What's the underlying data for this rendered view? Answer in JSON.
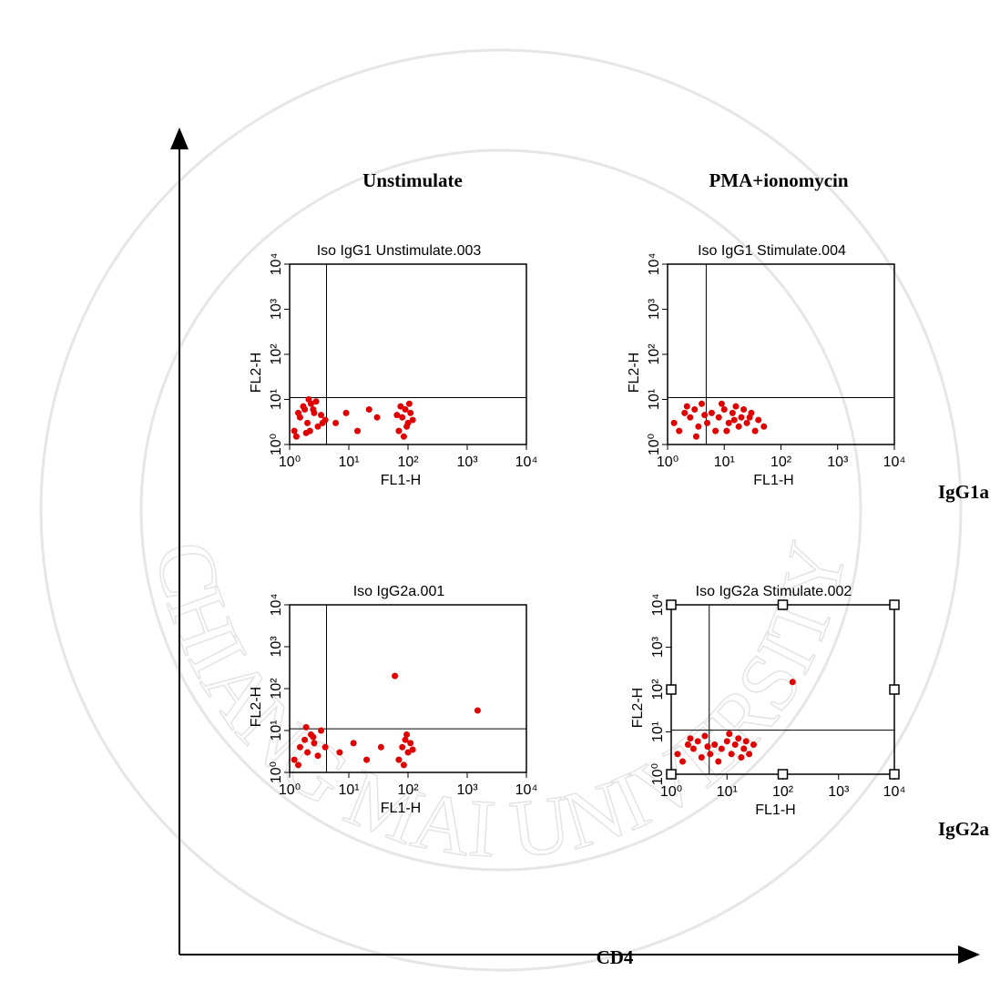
{
  "figure": {
    "column_labels": [
      "Unstimulate",
      "PMA+ionomycin"
    ],
    "row_labels": [
      "IgG1a",
      "IgG2a"
    ],
    "x_axis_label": "CD4",
    "watermark": "CHIANG MAI UNIVERSITY"
  },
  "chart_data": [
    {
      "type": "scatter",
      "title": "Iso IgG1 Unstimulate.003",
      "xlabel": "FL1-H",
      "ylabel": "FL2-H",
      "color": "#e00000",
      "log_scale": true,
      "x": [
        1.2,
        1.5,
        1.8,
        2,
        2.3,
        2.6,
        3,
        3.4,
        1.3,
        1.7,
        2.2,
        2.8,
        3.6,
        1.4,
        2.5,
        4,
        1.9,
        2.1,
        6,
        9,
        14,
        22,
        30,
        70,
        80,
        90,
        100,
        110,
        75,
        85,
        95,
        105,
        120,
        65
      ],
      "y": [
        2,
        4,
        6,
        3,
        8,
        5,
        2.5,
        4.5,
        1.5,
        7,
        2,
        9,
        3,
        5,
        6,
        3.5,
        1.8,
        10,
        3,
        5,
        2,
        6,
        4,
        2,
        4,
        6,
        3,
        5,
        7,
        1.5,
        2.5,
        8,
        3.5,
        4.5
      ],
      "xlim": [
        1,
        10000
      ],
      "ylim": [
        1,
        10000
      ],
      "xticks": [
        {
          "value": 1,
          "label": "10⁰"
        },
        {
          "value": 10,
          "label": "10¹"
        },
        {
          "value": 100,
          "label": "10²"
        },
        {
          "value": 1000,
          "label": "10³"
        },
        {
          "value": 10000,
          "label": "10⁴"
        }
      ],
      "yticks": [
        {
          "value": 1,
          "label": "10⁰"
        },
        {
          "value": 10,
          "label": "10¹"
        },
        {
          "value": 100,
          "label": "10²"
        },
        {
          "value": 1000,
          "label": "10³"
        },
        {
          "value": 10000,
          "label": "10⁴"
        }
      ],
      "quadrant": {
        "x": 4.2,
        "y": 11
      }
    },
    {
      "type": "scatter",
      "title": "Iso IgG1 Stimulate.004",
      "xlabel": "FL1-H",
      "ylabel": "FL2-H",
      "color": "#e00000",
      "log_scale": true,
      "x": [
        1.3,
        1.6,
        2,
        2.5,
        3,
        3.5,
        4,
        5,
        6,
        7,
        8,
        10,
        12,
        14,
        16,
        18,
        20,
        25,
        30,
        35,
        40,
        50,
        2.2,
        3.2,
        4.5,
        9,
        11,
        15,
        22,
        28
      ],
      "y": [
        3,
        2,
        5,
        4,
        6,
        2.5,
        8,
        3,
        5,
        2,
        4,
        6,
        3,
        5,
        7,
        2.5,
        4,
        3,
        5,
        2,
        3.5,
        2.5,
        7,
        1.5,
        4.5,
        8,
        2,
        3.5,
        6,
        4
      ],
      "xlim": [
        1,
        10000
      ],
      "ylim": [
        1,
        10000
      ],
      "xticks": [
        {
          "value": 1,
          "label": "10⁰"
        },
        {
          "value": 10,
          "label": "10¹"
        },
        {
          "value": 100,
          "label": "10²"
        },
        {
          "value": 1000,
          "label": "10³"
        },
        {
          "value": 10000,
          "label": "10⁴"
        }
      ],
      "yticks": [
        {
          "value": 1,
          "label": "10⁰"
        },
        {
          "value": 10,
          "label": "10¹"
        },
        {
          "value": 100,
          "label": "10²"
        },
        {
          "value": 1000,
          "label": "10³"
        },
        {
          "value": 10000,
          "label": "10⁴"
        }
      ],
      "quadrant": {
        "x": 4.8,
        "y": 11
      }
    },
    {
      "type": "scatter",
      "title": "Iso IgG2a.001",
      "xlabel": "FL1-H",
      "ylabel": "FL2-H",
      "color": "#e00000",
      "log_scale": true,
      "x": [
        1.2,
        1.5,
        1.8,
        2,
        2.3,
        2.6,
        3,
        3.4,
        1.4,
        2.5,
        4,
        1.9,
        7,
        12,
        20,
        35,
        70,
        80,
        90,
        100,
        110,
        85,
        95,
        120,
        60,
        1500
      ],
      "y": [
        2,
        4,
        6,
        3,
        8,
        5,
        2.5,
        10,
        1.5,
        7,
        4,
        12,
        3,
        5,
        2,
        4,
        2,
        4,
        6,
        3,
        5,
        1.5,
        8,
        3.5,
        200,
        30
      ],
      "xlim": [
        1,
        10000
      ],
      "ylim": [
        1,
        10000
      ],
      "xticks": [
        {
          "value": 1,
          "label": "10⁰"
        },
        {
          "value": 10,
          "label": "10¹"
        },
        {
          "value": 100,
          "label": "10²"
        },
        {
          "value": 1000,
          "label": "10³"
        },
        {
          "value": 10000,
          "label": "10⁴"
        }
      ],
      "yticks": [
        {
          "value": 1,
          "label": "10⁰"
        },
        {
          "value": 10,
          "label": "10¹"
        },
        {
          "value": 100,
          "label": "10²"
        },
        {
          "value": 1000,
          "label": "10³"
        },
        {
          "value": 10000,
          "label": "10⁴"
        }
      ],
      "quadrant": {
        "x": 4.2,
        "y": 11
      }
    },
    {
      "type": "scatter",
      "title": "Iso IgG2a Stimulate.002",
      "xlabel": "FL1-H",
      "ylabel": "FL2-H",
      "color": "#e00000",
      "log_scale": true,
      "selected": true,
      "x": [
        1.3,
        1.6,
        2,
        2.5,
        3,
        3.5,
        4,
        5,
        6,
        7,
        8,
        10,
        12,
        14,
        16,
        18,
        20,
        25,
        30,
        2.2,
        4.5,
        11,
        22,
        150
      ],
      "y": [
        3,
        2,
        5,
        4,
        6,
        2.5,
        8,
        3,
        5,
        2,
        4,
        6,
        3,
        5,
        7,
        2.5,
        4,
        3,
        5,
        7,
        4.5,
        9,
        6,
        150
      ],
      "xlim": [
        1,
        10000
      ],
      "ylim": [
        1,
        10000
      ],
      "xticks": [
        {
          "value": 1,
          "label": "10⁰"
        },
        {
          "value": 10,
          "label": "10¹"
        },
        {
          "value": 100,
          "label": "10²"
        },
        {
          "value": 1000,
          "label": "10³"
        },
        {
          "value": 10000,
          "label": "10⁴"
        }
      ],
      "yticks": [
        {
          "value": 1,
          "label": "10⁰"
        },
        {
          "value": 10,
          "label": "10¹"
        },
        {
          "value": 100,
          "label": "10²"
        },
        {
          "value": 1000,
          "label": "10³"
        },
        {
          "value": 10000,
          "label": "10⁴"
        }
      ],
      "quadrant": {
        "x": 4.8,
        "y": 11
      }
    }
  ]
}
